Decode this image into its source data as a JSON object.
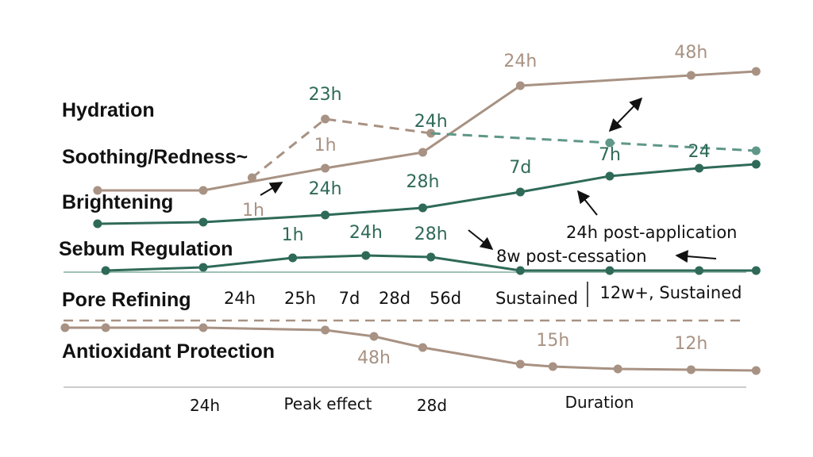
{
  "chart_data": {
    "type": "line",
    "title": "",
    "colors": {
      "tan": "#a89283",
      "teal": "#2f6a58",
      "teal_dashed": "#5f9788",
      "arrow": "#111111"
    },
    "categories": [
      "Hydration",
      "Soothing/Redness~",
      "Brightening",
      "Sebum Regulation",
      "Pore Refining",
      "Antioxidant Protection"
    ],
    "series": [
      {
        "color": "tan",
        "style": "solid",
        "points": [
          [
            0.12,
            240
          ],
          [
            0.25,
            240
          ],
          [
            0.4,
            212
          ],
          [
            0.52,
            192
          ],
          [
            0.64,
            108
          ],
          [
            0.85,
            95
          ],
          [
            0.93,
            90
          ]
        ],
        "labels": [
          {
            "text": "24h",
            "at": 4,
            "dy": -24
          },
          {
            "text": "48h",
            "at": 5,
            "dy": -22
          },
          {
            "text": "1h",
            "at": 2,
            "dy": -22
          }
        ]
      },
      {
        "color": "tan",
        "style": "dashed",
        "points": [
          [
            0.31,
            224
          ],
          [
            0.4,
            150
          ],
          [
            0.53,
            168
          ]
        ],
        "labels": [
          {
            "text": "23h",
            "at": 1,
            "dy": -24,
            "color": "teal"
          }
        ]
      },
      {
        "color": "teal_dashed",
        "style": "dashed",
        "points": [
          [
            0.53,
            168
          ],
          [
            0.75,
            180
          ],
          [
            0.93,
            190
          ]
        ],
        "labels": [
          {
            "text": "24h",
            "at": 0,
            "dy": -8,
            "color": "teal"
          }
        ]
      },
      {
        "color": "teal",
        "style": "solid",
        "points": [
          [
            0.12,
            282
          ],
          [
            0.25,
            280
          ],
          [
            0.4,
            271
          ],
          [
            0.52,
            262
          ],
          [
            0.64,
            242
          ],
          [
            0.75,
            222
          ],
          [
            0.86,
            212
          ],
          [
            0.93,
            207
          ]
        ],
        "labels": [
          {
            "text": "24h",
            "at": 2,
            "dy": -26
          },
          {
            "text": "28h",
            "at": 3,
            "dy": -26
          },
          {
            "text": "7d",
            "at": 4,
            "dy": -24
          },
          {
            "text": "7h",
            "at": 5,
            "dy": -20
          },
          {
            "text": "24",
            "at": 6,
            "dy": -14
          }
        ]
      },
      {
        "color": "teal",
        "style": "solid",
        "points": [
          [
            0.13,
            341
          ],
          [
            0.25,
            337
          ],
          [
            0.36,
            325
          ],
          [
            0.45,
            322
          ],
          [
            0.53,
            324
          ],
          [
            0.64,
            341
          ],
          [
            0.75,
            341
          ],
          [
            0.86,
            341
          ],
          [
            0.93,
            341
          ]
        ],
        "labels": [
          {
            "text": "1h",
            "at": 2,
            "dy": -22
          },
          {
            "text": "24h",
            "at": 3,
            "dy": -22
          },
          {
            "text": "28h",
            "at": 4,
            "dy": -22
          }
        ]
      },
      {
        "color": "tan",
        "style": "solid",
        "points": [
          [
            0.08,
            413
          ],
          [
            0.13,
            413
          ],
          [
            0.25,
            413
          ],
          [
            0.4,
            416
          ],
          [
            0.46,
            424
          ],
          [
            0.52,
            438
          ],
          [
            0.64,
            459
          ],
          [
            0.68,
            462
          ],
          [
            0.76,
            465
          ],
          [
            0.85,
            466
          ],
          [
            0.93,
            467
          ]
        ],
        "labels": [
          {
            "text": "48h",
            "at": 4,
            "dy": 34
          },
          {
            "text": "15h",
            "at": 7,
            "dy": -26
          },
          {
            "text": "12h",
            "at": 9,
            "dy": -26
          }
        ]
      }
    ],
    "standalone_labels": [
      "1h"
    ],
    "tick_labels": [
      "24h",
      "25h",
      "7d",
      "28d",
      "56d",
      "Sustained",
      "12w+, Sustained"
    ],
    "annotations": [
      "24h post-application",
      "8w post-cessation"
    ],
    "axis_labels": [
      "24h",
      "Peak effect",
      "28d",
      "Duration"
    ],
    "grid": false,
    "legend": "none"
  }
}
